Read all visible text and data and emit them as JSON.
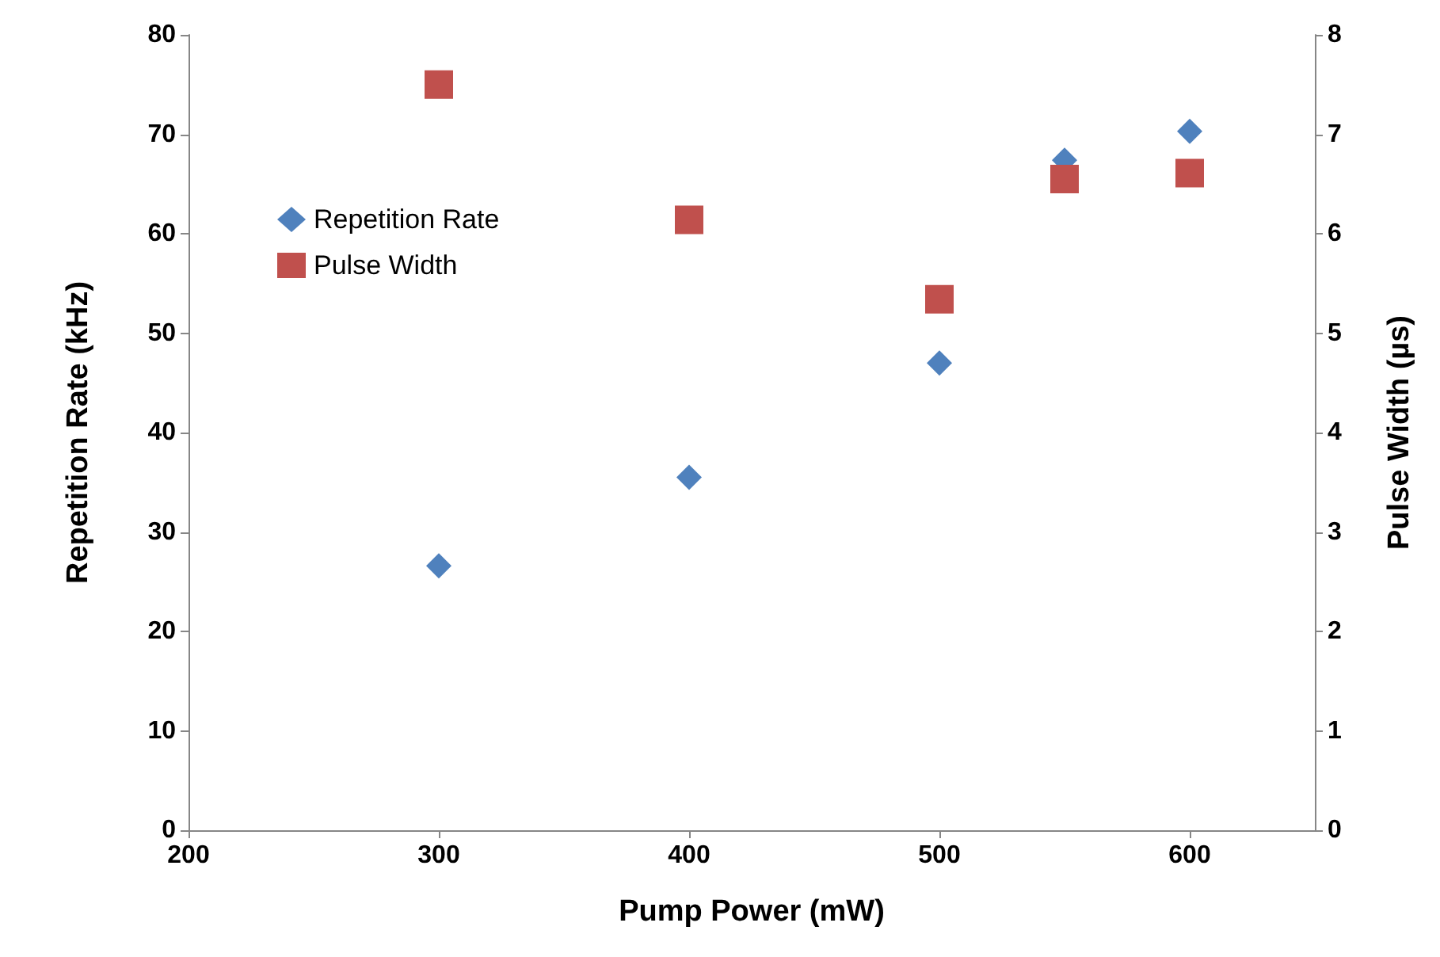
{
  "chart_data": {
    "type": "scatter",
    "xlabel": "Pump Power (mW)",
    "ylabel": "Repetition Rate (kHz)",
    "y2label": "Pulse Width (µs)",
    "x": [
      300,
      400,
      500,
      550,
      600
    ],
    "series": [
      {
        "name": "Repetition Rate",
        "color": "#4f81bd",
        "marker": "diamond",
        "values": [
          26.6,
          35.5,
          47.0,
          67.4,
          70.3
        ]
      },
      {
        "name": "Pulse Width",
        "color": "#c0504d",
        "marker": "square",
        "axis": "y2",
        "values": [
          7.5,
          6.14,
          5.34,
          6.55,
          6.61
        ]
      }
    ],
    "xlim": [
      200,
      650
    ],
    "xticks": [
      200,
      300,
      400,
      500,
      600
    ],
    "ylim": [
      0,
      80
    ],
    "yticks": [
      0,
      10,
      20,
      30,
      40,
      50,
      60,
      70,
      80
    ],
    "y2lim": [
      0,
      8
    ],
    "y2ticks": [
      0,
      1,
      2,
      3,
      4,
      5,
      6,
      7,
      8
    ],
    "grid": false,
    "legend": "top left"
  }
}
